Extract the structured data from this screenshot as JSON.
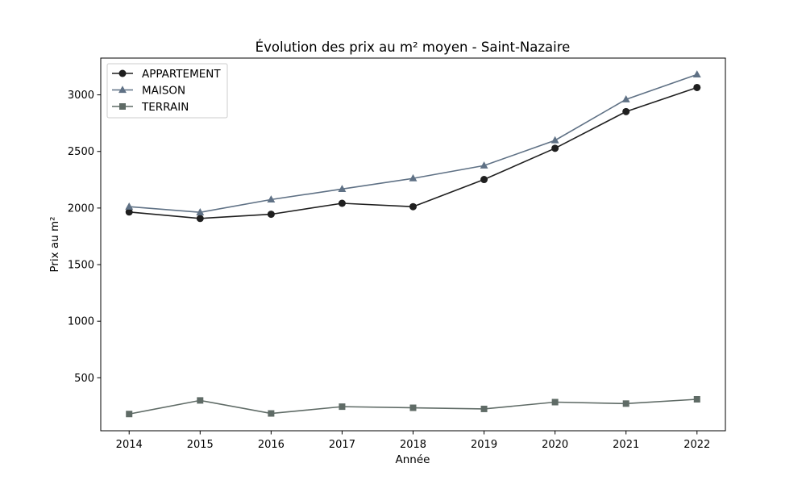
{
  "chart_data": {
    "type": "line",
    "title": "Évolution des prix au m² moyen - Saint-Nazaire",
    "xlabel": "Année",
    "ylabel": "Prix au m²",
    "x": [
      2014,
      2015,
      2016,
      2017,
      2018,
      2019,
      2020,
      2021,
      2022
    ],
    "x_ticks": [
      "2014",
      "2015",
      "2016",
      "2017",
      "2018",
      "2019",
      "2020",
      "2021",
      "2022"
    ],
    "y_ticks": [
      "500",
      "1000",
      "1500",
      "2000",
      "2500",
      "3000"
    ],
    "y_tick_values": [
      500,
      1000,
      1500,
      2000,
      2500,
      3000
    ],
    "xlim": [
      2013.6,
      2022.4
    ],
    "ylim": [
      32,
      3325
    ],
    "grid": false,
    "legend_position": "top-left",
    "series": [
      {
        "name": "APPARTEMENT",
        "color": "#1f1f1f",
        "marker": "circle",
        "values": [
          1965,
          1908,
          1945,
          2042,
          2012,
          2252,
          2528,
          2852,
          3065
        ]
      },
      {
        "name": "MAISON",
        "color": "#5f7185",
        "marker": "triangle",
        "values": [
          2012,
          1962,
          2075,
          2168,
          2262,
          2375,
          2598,
          2960,
          3180
        ]
      },
      {
        "name": "TERRAIN",
        "color": "#5f6b66",
        "marker": "square",
        "values": [
          180,
          300,
          185,
          245,
          235,
          225,
          285,
          272,
          310
        ]
      }
    ]
  }
}
